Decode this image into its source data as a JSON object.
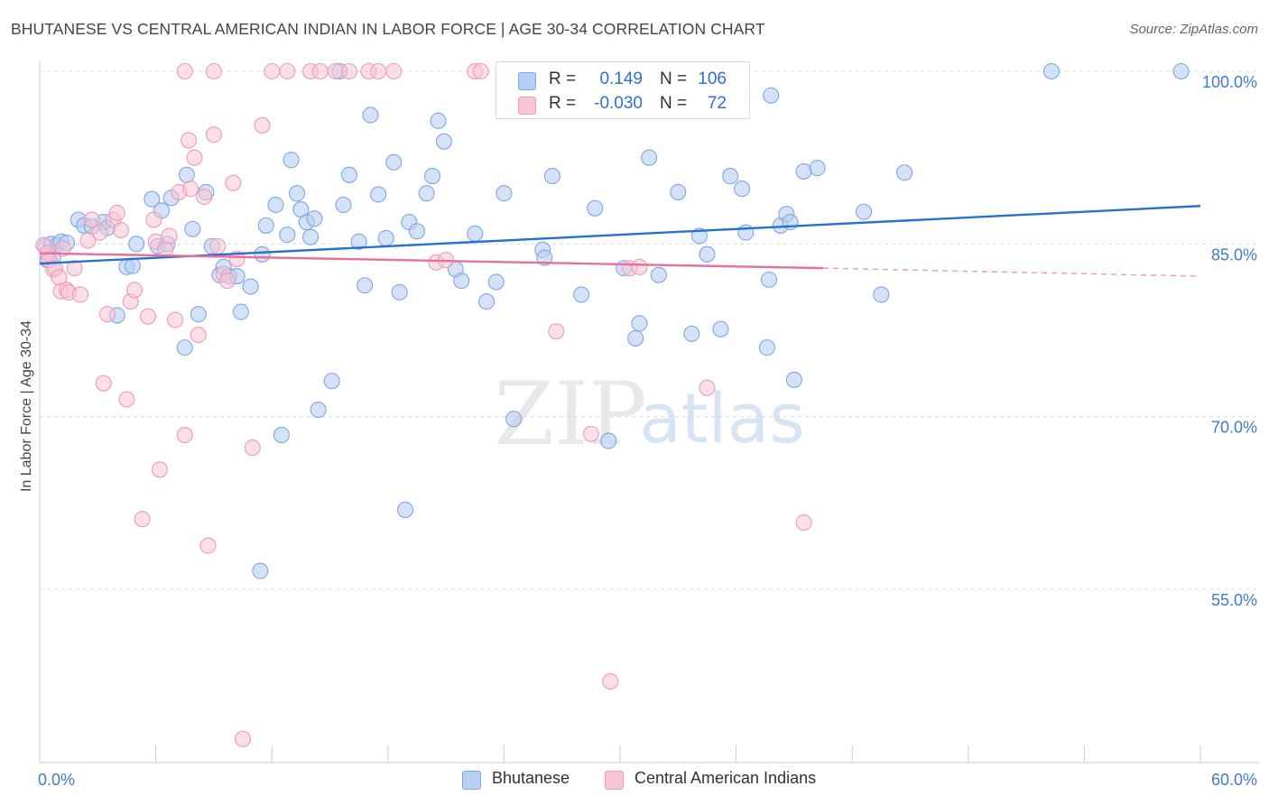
{
  "header": {
    "title": "BHUTANESE VS CENTRAL AMERICAN INDIAN IN LABOR FORCE | AGE 30-34 CORRELATION CHART",
    "source": "Source: ZipAtlas.com"
  },
  "watermark": {
    "zip": "ZIP",
    "atlas": "atlas"
  },
  "colors": {
    "blue_fill": "#b7cff2",
    "blue_stroke": "#7fa6e4",
    "blue_line": "#2670d0",
    "pink_fill": "#f8c5d6",
    "pink_stroke": "#ee9ab8",
    "pink_line": "#e76f9a",
    "axis_text": "#3f7bd1",
    "grid": "#d7dbe0"
  },
  "legend": {
    "rows": [
      {
        "r_label": "R =",
        "r_value": "0.149",
        "n_label": "N =",
        "n_value": "106"
      },
      {
        "r_label": "R =",
        "r_value": "-0.030",
        "n_label": "N =",
        "n_value": "72"
      }
    ]
  },
  "bottom_legend": {
    "items": [
      "Bhutanese",
      "Central American Indians"
    ]
  },
  "chart_data": {
    "type": "scatter",
    "title": "BHUTANESE VS CENTRAL AMERICAN INDIAN IN LABOR FORCE | AGE 30-34 CORRELATION CHART",
    "xlabel": "",
    "ylabel": "In Labor Force | Age 30-34",
    "xlim": [
      0,
      60
    ],
    "ylim": [
      40,
      102
    ],
    "x_tick_labels": [
      "0.0%",
      "60.0%"
    ],
    "y_ticks": [
      55,
      70,
      85,
      100
    ],
    "y_tick_labels": [
      "55.0%",
      "70.0%",
      "85.0%",
      "100.0%"
    ],
    "grid": true,
    "legend_position": "top-center",
    "series": [
      {
        "name": "Bhutanese",
        "r": 0.149,
        "n": 106,
        "trend": {
          "x": [
            0,
            60
          ],
          "y": [
            83.3,
            88.3
          ],
          "dashed_from": null
        },
        "points": [
          [
            0.3,
            84.8
          ],
          [
            0.4,
            83.6
          ],
          [
            0.6,
            85.0
          ],
          [
            0.7,
            83.9
          ],
          [
            0.9,
            84.9
          ],
          [
            1.1,
            85.2
          ],
          [
            1.4,
            85.1
          ],
          [
            2.0,
            87.1
          ],
          [
            2.3,
            86.6
          ],
          [
            2.7,
            86.5
          ],
          [
            3.3,
            86.9
          ],
          [
            3.5,
            86.4
          ],
          [
            4.0,
            78.8
          ],
          [
            4.5,
            83.0
          ],
          [
            4.8,
            83.1
          ],
          [
            5.0,
            85.0
          ],
          [
            5.8,
            88.9
          ],
          [
            6.1,
            84.8
          ],
          [
            6.3,
            87.9
          ],
          [
            6.6,
            85.0
          ],
          [
            6.8,
            89.0
          ],
          [
            7.5,
            76.0
          ],
          [
            7.6,
            91.0
          ],
          [
            7.9,
            86.3
          ],
          [
            8.2,
            78.9
          ],
          [
            8.6,
            89.5
          ],
          [
            8.9,
            84.8
          ],
          [
            9.3,
            82.3
          ],
          [
            9.5,
            83.0
          ],
          [
            9.8,
            82.2
          ],
          [
            10.2,
            82.2
          ],
          [
            10.4,
            79.1
          ],
          [
            10.9,
            81.3
          ],
          [
            11.4,
            56.6
          ],
          [
            11.5,
            84.1
          ],
          [
            11.7,
            86.6
          ],
          [
            12.2,
            88.4
          ],
          [
            12.5,
            68.4
          ],
          [
            12.8,
            85.8
          ],
          [
            13.0,
            92.3
          ],
          [
            13.3,
            89.4
          ],
          [
            13.5,
            88.0
          ],
          [
            13.8,
            86.9
          ],
          [
            14.0,
            85.6
          ],
          [
            14.2,
            87.2
          ],
          [
            14.4,
            70.6
          ],
          [
            15.1,
            73.1
          ],
          [
            15.5,
            100.0
          ],
          [
            15.7,
            88.4
          ],
          [
            16.0,
            91.0
          ],
          [
            16.5,
            85.2
          ],
          [
            16.8,
            81.4
          ],
          [
            17.1,
            96.2
          ],
          [
            17.5,
            89.3
          ],
          [
            17.9,
            85.5
          ],
          [
            18.3,
            92.1
          ],
          [
            18.6,
            80.8
          ],
          [
            18.9,
            61.9
          ],
          [
            19.1,
            86.9
          ],
          [
            19.5,
            86.1
          ],
          [
            20.0,
            89.4
          ],
          [
            20.3,
            90.9
          ],
          [
            20.6,
            95.7
          ],
          [
            20.9,
            93.9
          ],
          [
            21.5,
            82.8
          ],
          [
            21.8,
            81.8
          ],
          [
            22.5,
            85.9
          ],
          [
            23.1,
            80.0
          ],
          [
            23.6,
            81.7
          ],
          [
            24.0,
            89.4
          ],
          [
            24.5,
            69.8
          ],
          [
            26.0,
            84.5
          ],
          [
            26.1,
            83.8
          ],
          [
            26.5,
            90.9
          ],
          [
            27.0,
            100.0
          ],
          [
            28.0,
            80.6
          ],
          [
            28.7,
            88.1
          ],
          [
            29.4,
            67.9
          ],
          [
            30.2,
            82.9
          ],
          [
            30.8,
            76.8
          ],
          [
            31.0,
            78.1
          ],
          [
            31.5,
            92.5
          ],
          [
            32.0,
            82.3
          ],
          [
            33.0,
            89.5
          ],
          [
            33.7,
            77.2
          ],
          [
            34.1,
            85.7
          ],
          [
            34.5,
            84.1
          ],
          [
            35.2,
            77.6
          ],
          [
            35.7,
            90.9
          ],
          [
            36.3,
            89.8
          ],
          [
            36.5,
            86.0
          ],
          [
            37.6,
            76.0
          ],
          [
            37.7,
            81.9
          ],
          [
            37.8,
            97.9
          ],
          [
            38.3,
            86.6
          ],
          [
            38.6,
            87.6
          ],
          [
            38.8,
            86.9
          ],
          [
            39.0,
            73.2
          ],
          [
            39.5,
            91.3
          ],
          [
            40.2,
            91.6
          ],
          [
            42.6,
            87.8
          ],
          [
            43.5,
            80.6
          ],
          [
            44.7,
            91.2
          ],
          [
            59.0,
            100.0
          ],
          [
            52.3,
            100.0
          ]
        ]
      },
      {
        "name": "Central American Indians",
        "r": -0.03,
        "n": 72,
        "trend": {
          "x": [
            0,
            40.5,
            60
          ],
          "y": [
            84.2,
            82.9,
            82.2
          ],
          "dashed_from": 40.5
        },
        "points": [
          [
            0.2,
            84.9
          ],
          [
            0.4,
            84.2
          ],
          [
            0.5,
            83.6
          ],
          [
            0.7,
            82.8
          ],
          [
            0.8,
            82.9
          ],
          [
            1.0,
            82.1
          ],
          [
            1.1,
            80.9
          ],
          [
            1.2,
            84.6
          ],
          [
            1.4,
            81.0
          ],
          [
            1.5,
            80.8
          ],
          [
            1.8,
            82.9
          ],
          [
            2.1,
            80.6
          ],
          [
            2.5,
            85.3
          ],
          [
            2.7,
            87.1
          ],
          [
            3.1,
            86.0
          ],
          [
            3.3,
            72.9
          ],
          [
            3.5,
            78.9
          ],
          [
            3.8,
            87.1
          ],
          [
            4.0,
            87.7
          ],
          [
            4.2,
            86.2
          ],
          [
            4.5,
            71.5
          ],
          [
            4.7,
            80.0
          ],
          [
            4.9,
            81.0
          ],
          [
            5.3,
            61.1
          ],
          [
            5.6,
            78.7
          ],
          [
            5.9,
            87.1
          ],
          [
            6.0,
            85.2
          ],
          [
            6.2,
            65.4
          ],
          [
            6.5,
            84.5
          ],
          [
            6.7,
            85.7
          ],
          [
            7.0,
            78.4
          ],
          [
            7.2,
            89.5
          ],
          [
            7.5,
            68.4
          ],
          [
            7.7,
            94.0
          ],
          [
            7.8,
            89.8
          ],
          [
            8.0,
            92.5
          ],
          [
            8.2,
            77.1
          ],
          [
            8.5,
            89.1
          ],
          [
            9.0,
            94.5
          ],
          [
            9.2,
            84.8
          ],
          [
            9.5,
            82.4
          ],
          [
            9.7,
            81.8
          ],
          [
            10.0,
            90.3
          ],
          [
            10.2,
            83.7
          ],
          [
            11.0,
            67.3
          ],
          [
            11.5,
            95.3
          ],
          [
            12.0,
            100.0
          ],
          [
            12.8,
            100.0
          ],
          [
            14.0,
            100.0
          ],
          [
            14.5,
            100.0
          ],
          [
            15.3,
            100.0
          ],
          [
            16.0,
            100.0
          ],
          [
            17.0,
            100.0
          ],
          [
            17.5,
            100.0
          ],
          [
            18.3,
            100.0
          ],
          [
            20.5,
            83.4
          ],
          [
            21.0,
            83.6
          ],
          [
            22.5,
            100.0
          ],
          [
            22.8,
            100.0
          ],
          [
            24.0,
            100.0
          ],
          [
            25.0,
            100.0
          ],
          [
            26.7,
            77.4
          ],
          [
            28.5,
            68.5
          ],
          [
            29.5,
            47.0
          ],
          [
            30.5,
            82.9
          ],
          [
            31.0,
            83.0
          ],
          [
            34.5,
            72.5
          ],
          [
            39.5,
            60.8
          ],
          [
            7.5,
            100.0
          ],
          [
            9.0,
            100.0
          ],
          [
            10.5,
            42.0
          ],
          [
            8.7,
            58.8
          ]
        ]
      }
    ]
  }
}
